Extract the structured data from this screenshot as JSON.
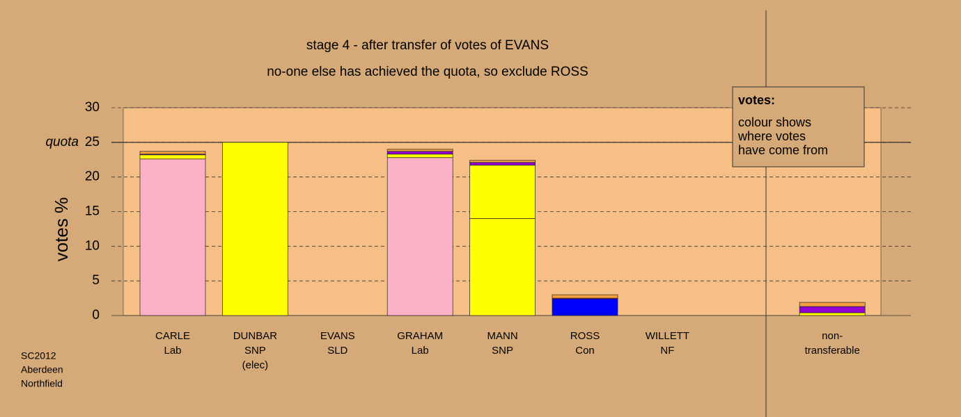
{
  "chart_data": {
    "type": "stacked-bar",
    "title": "stage 4 - after transfer of votes of EVANS",
    "subtitle": "no-one else has achieved the quota, so exclude ROSS",
    "y_label": "votes %",
    "categories": [
      [
        "CARLE",
        "Lab"
      ],
      [
        "DUNBAR",
        "SNP",
        "(elec)"
      ],
      [
        "EVANS",
        "SLD"
      ],
      [
        "GRAHAM",
        "Lab"
      ],
      [
        "MANN",
        "SNP"
      ],
      [
        "ROSS",
        "Con"
      ],
      [
        "WILLETT",
        "NF"
      ],
      null,
      [
        "non-",
        "transferable"
      ]
    ],
    "series": [
      {
        "color": "#fbb0c4",
        "values": [
          22.6,
          0,
          0,
          22.8,
          0,
          0,
          0,
          null,
          0
        ]
      },
      {
        "color": "#ffff00",
        "values": [
          0,
          25,
          0,
          0,
          14.0,
          0,
          0,
          null,
          0
        ]
      },
      {
        "color": "#ffff00",
        "values": [
          0.6,
          0,
          0,
          0.5,
          7.7,
          0,
          0,
          null,
          0.4
        ]
      },
      {
        "color": "#0000ff",
        "values": [
          0,
          0,
          0,
          0,
          0,
          2.4,
          0,
          null,
          0
        ]
      },
      {
        "color": "#9400d3",
        "values": [
          0.1,
          0,
          0,
          0.4,
          0.4,
          0.1,
          0,
          null,
          0.9
        ]
      },
      {
        "color": "#f4a040",
        "values": [
          0.4,
          0,
          0,
          0.3,
          0.3,
          0.5,
          0,
          null,
          0.6
        ]
      }
    ],
    "ylim": [
      0,
      30
    ],
    "yticks": [
      0,
      5,
      10,
      15,
      20,
      25,
      30
    ],
    "grid": true,
    "quota": {
      "value": 25,
      "label": "quota"
    },
    "legend_box": {
      "title": "votes:",
      "lines": [
        "colour shows",
        "where votes",
        "have come from"
      ]
    },
    "footer": [
      "SC2012",
      "Aberdeen",
      "Northfield"
    ]
  }
}
